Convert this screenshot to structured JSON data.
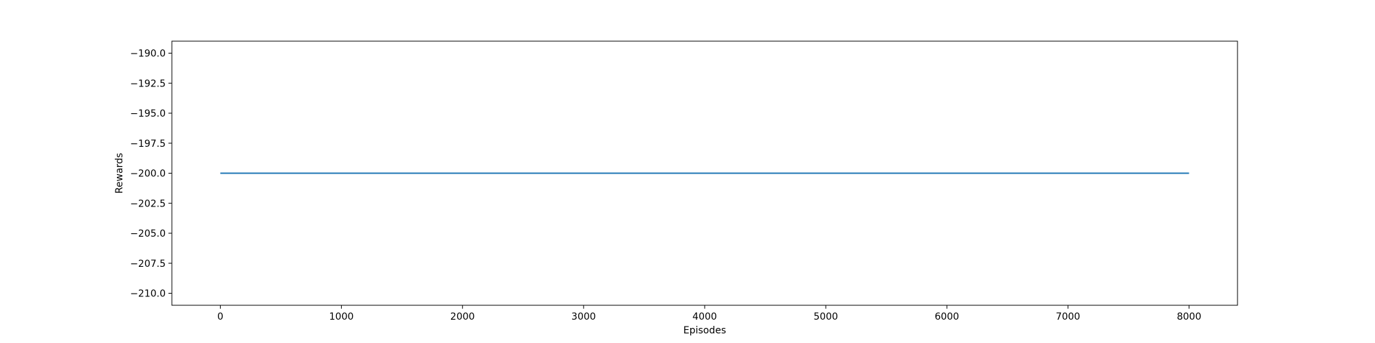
{
  "chart_data": {
    "type": "line",
    "title": "",
    "xlabel": "Episodes",
    "ylabel": "Rewards",
    "xlim": [
      -400,
      8400
    ],
    "ylim": [
      -211,
      -189
    ],
    "x_ticks": [
      0,
      1000,
      2000,
      3000,
      4000,
      5000,
      6000,
      7000,
      8000
    ],
    "x_tick_labels": [
      "0",
      "1000",
      "2000",
      "3000",
      "4000",
      "5000",
      "6000",
      "7000",
      "8000"
    ],
    "y_ticks": [
      -190.0,
      -192.5,
      -195.0,
      -197.5,
      -200.0,
      -202.5,
      -205.0,
      -207.5,
      -210.0
    ],
    "y_tick_labels": [
      "−190.0",
      "−192.5",
      "−195.0",
      "−197.5",
      "−200.0",
      "−202.5",
      "−205.0",
      "−207.5",
      "−210.0"
    ],
    "grid": false,
    "legend": "none",
    "series": [
      {
        "color": "#1f77b4",
        "x": [
          0,
          8000
        ],
        "y": [
          -200,
          -200
        ]
      }
    ]
  }
}
